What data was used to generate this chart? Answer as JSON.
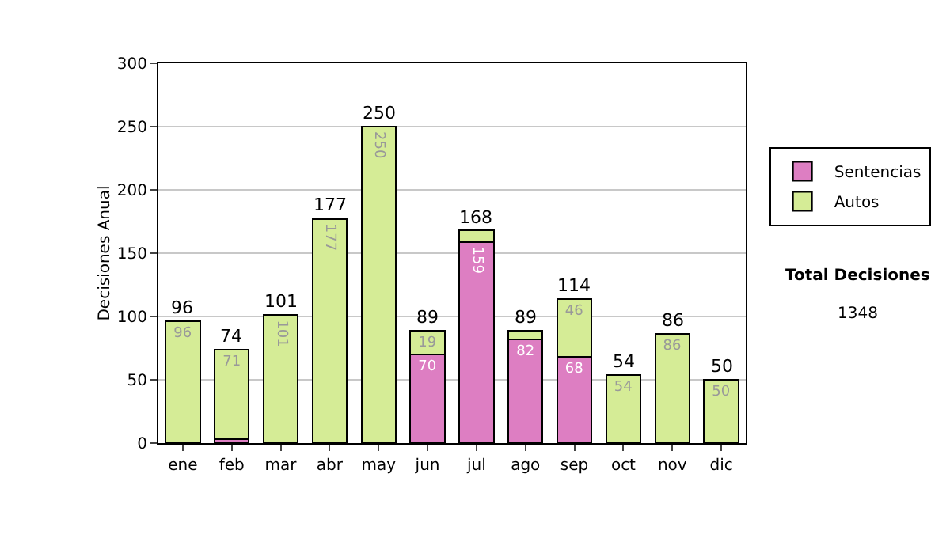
{
  "chart_data": {
    "type": "bar",
    "stacked": true,
    "ylabel": "Decisiones Anual",
    "categories": [
      "ene",
      "feb",
      "mar",
      "abr",
      "may",
      "jun",
      "jul",
      "ago",
      "sep",
      "oct",
      "nov",
      "dic"
    ],
    "series": [
      {
        "name": "Sentencias",
        "color": "#dd7ec2",
        "values": [
          0,
          3,
          0,
          0,
          0,
          70,
          159,
          82,
          68,
          0,
          0,
          0
        ],
        "value_labels": [
          null,
          null,
          null,
          null,
          null,
          "70",
          "159",
          "82",
          "68",
          null,
          null,
          null
        ]
      },
      {
        "name": "Autos",
        "color": "#d5ec96",
        "values": [
          96,
          71,
          101,
          177,
          250,
          19,
          9,
          7,
          46,
          54,
          86,
          50
        ],
        "value_labels": [
          "96",
          "71",
          "101",
          "177",
          "250",
          "19",
          null,
          null,
          "46",
          "54",
          "86",
          "50"
        ]
      }
    ],
    "totals": [
      "96",
      "74",
      "101",
      "177",
      "250",
      "89",
      "168",
      "89",
      "114",
      "54",
      "86",
      "50"
    ],
    "ylim": [
      0,
      300
    ],
    "yticks": [
      0,
      50,
      100,
      150,
      200,
      250,
      300
    ],
    "grid": "y",
    "legend": "right",
    "annotations": [
      "Total Decisiones",
      "1348"
    ]
  }
}
